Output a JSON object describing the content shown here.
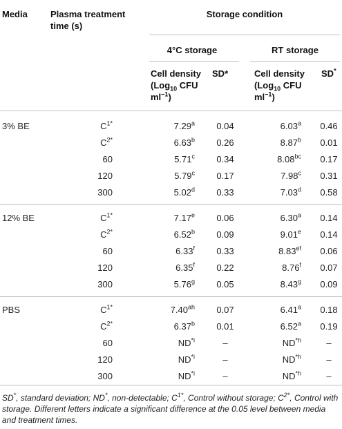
{
  "header": {
    "media": "Media",
    "plasma_line1": "Plasma treatment",
    "plasma_line2": "time (s)",
    "storage_condition": "Storage condition",
    "cold_storage": "4°C storage",
    "rt_storage": "RT storage",
    "cell_density_line1": "Cell density",
    "cell_density_log_pre": "(Log",
    "cell_density_log_sub": "10",
    "cell_density_log_post": " CFU",
    "cell_density_line3_pre": "ml",
    "cell_density_line3_sup": "−1",
    "cell_density_line3_post": ")",
    "sd_label": "SD",
    "sd_star": "*"
  },
  "groups": [
    {
      "media": "3% BE",
      "rows": [
        {
          "time": "C",
          "time_sup": "1*",
          "cold_val": "7.29",
          "cold_sup": "a",
          "cold_sd": "0.04",
          "rt_val": "6.03",
          "rt_sup": "a",
          "rt_sd": "0.46"
        },
        {
          "time": "C",
          "time_sup": "2*",
          "cold_val": "6.63",
          "cold_sup": "b",
          "cold_sd": "0.26",
          "rt_val": "8.87",
          "rt_sup": "b",
          "rt_sd": "0.01"
        },
        {
          "time": "60",
          "time_sup": "",
          "cold_val": "5.71",
          "cold_sup": "c",
          "cold_sd": "0.34",
          "rt_val": "8.08",
          "rt_sup": "bc",
          "rt_sd": "0.17"
        },
        {
          "time": "120",
          "time_sup": "",
          "cold_val": "5.79",
          "cold_sup": "c",
          "cold_sd": "0.17",
          "rt_val": "7.98",
          "rt_sup": "c",
          "rt_sd": "0.31"
        },
        {
          "time": "300",
          "time_sup": "",
          "cold_val": "5.02",
          "cold_sup": "d",
          "cold_sd": "0.33",
          "rt_val": "7.03",
          "rt_sup": "d",
          "rt_sd": "0.58"
        }
      ]
    },
    {
      "media": "12% BE",
      "rows": [
        {
          "time": "C",
          "time_sup": "1*",
          "cold_val": "7.17",
          "cold_sup": "e",
          "cold_sd": "0.06",
          "rt_val": "6.30",
          "rt_sup": "a",
          "rt_sd": "0.14"
        },
        {
          "time": "C",
          "time_sup": "2*",
          "cold_val": "6.52",
          "cold_sup": "b",
          "cold_sd": "0.09",
          "rt_val": "9.01",
          "rt_sup": "e",
          "rt_sd": "0.14"
        },
        {
          "time": "60",
          "time_sup": "",
          "cold_val": "6.33",
          "cold_sup": "f",
          "cold_sd": "0.33",
          "rt_val": "8.83",
          "rt_sup": "ef",
          "rt_sd": "0.06"
        },
        {
          "time": "120",
          "time_sup": "",
          "cold_val": "6.35",
          "cold_sup": "f",
          "cold_sd": "0.22",
          "rt_val": "8.76",
          "rt_sup": "f",
          "rt_sd": "0.07"
        },
        {
          "time": "300",
          "time_sup": "",
          "cold_val": "5.76",
          "cold_sup": "g",
          "cold_sd": "0.05",
          "rt_val": "8.43",
          "rt_sup": "g",
          "rt_sd": "0.09"
        }
      ]
    },
    {
      "media": "PBS",
      "rows": [
        {
          "time": "C",
          "time_sup": "1*",
          "cold_val": "7.40",
          "cold_sup": "ah",
          "cold_sd": "0.07",
          "rt_val": "6.41",
          "rt_sup": "a",
          "rt_sd": "0.18"
        },
        {
          "time": "C",
          "time_sup": "2*",
          "cold_val": "6.37",
          "cold_sup": "b",
          "cold_sd": "0.01",
          "rt_val": "6.52",
          "rt_sup": "a",
          "rt_sd": "0.19"
        },
        {
          "time": "60",
          "time_sup": "",
          "cold_val": "ND",
          "cold_sup": "*i",
          "cold_sd": "–",
          "rt_val": "ND",
          "rt_sup": "*h",
          "rt_sd": "–"
        },
        {
          "time": "120",
          "time_sup": "",
          "cold_val": "ND",
          "cold_sup": "*i",
          "cold_sd": "–",
          "rt_val": "ND",
          "rt_sup": "*h",
          "rt_sd": "–"
        },
        {
          "time": "300",
          "time_sup": "",
          "cold_val": "ND",
          "cold_sup": "*i",
          "cold_sd": "–",
          "rt_val": "ND",
          "rt_sup": "*h",
          "rt_sd": "–"
        }
      ]
    }
  ],
  "footnote": {
    "p1": "SD",
    "p1_sup": "*",
    "p2": ", standard deviation; ND",
    "p2_sup": "*",
    "p3": ", non-detectable; C",
    "p3_sup": "1*",
    "p4": ", Control without storage; C",
    "p4_sup": "2*",
    "p5": ", Control with storage. Different letters indicate a significant difference at the 0.05 level between media and treatment times."
  }
}
